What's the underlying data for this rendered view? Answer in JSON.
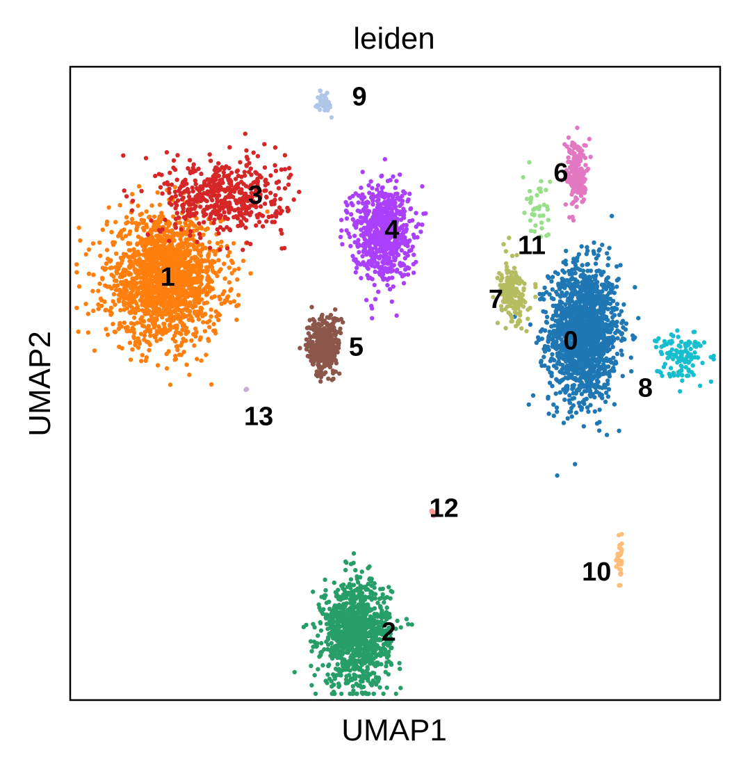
{
  "chart_data": {
    "type": "scatter",
    "title": "leiden",
    "xlabel": "UMAP1",
    "ylabel": "UMAP2",
    "xlim": [
      -10,
      10
    ],
    "ylim": [
      -10,
      10
    ],
    "grid": false,
    "legend": "on data",
    "clusters": [
      {
        "name": "0",
        "color": "#1f77b4",
        "center": [
          5.8,
          1.6
        ],
        "spread": [
          1.05,
          2.15
        ],
        "n": 1600
      },
      {
        "name": "1",
        "color": "#ff7f0e",
        "center": [
          -7.1,
          3.3
        ],
        "spread": [
          1.75,
          1.95
        ],
        "n": 1700
      },
      {
        "name": "2",
        "color": "#279e68",
        "center": [
          -1.2,
          -7.9
        ],
        "spread": [
          1.05,
          1.65
        ],
        "n": 1100
      },
      {
        "name": "3",
        "color": "#d62728",
        "center": [
          -5.3,
          5.9
        ],
        "spread": [
          1.9,
          1.2
        ],
        "n": 500
      },
      {
        "name": "4",
        "color": "#aa40fc",
        "center": [
          -0.4,
          4.8
        ],
        "spread": [
          0.9,
          1.55
        ],
        "n": 700
      },
      {
        "name": "5",
        "color": "#8c564b",
        "center": [
          -2.2,
          1.2
        ],
        "spread": [
          0.5,
          0.95
        ],
        "n": 350
      },
      {
        "name": "6",
        "color": "#e377c2",
        "center": [
          5.6,
          6.6
        ],
        "spread": [
          0.32,
          1.05
        ],
        "n": 200
      },
      {
        "name": "7",
        "color": "#b5bd61",
        "center": [
          3.6,
          2.8
        ],
        "spread": [
          0.45,
          0.95
        ],
        "n": 180
      },
      {
        "name": "8",
        "color": "#17becf",
        "center": [
          8.8,
          0.9
        ],
        "spread": [
          0.7,
          0.8
        ],
        "n": 120
      },
      {
        "name": "9",
        "color": "#aec7e8",
        "center": [
          -2.2,
          8.9
        ],
        "spread": [
          0.18,
          0.35
        ],
        "n": 40
      },
      {
        "name": "10",
        "color": "#ffbb78",
        "center": [
          6.9,
          -5.6
        ],
        "spread": [
          0.12,
          0.6
        ],
        "n": 30
      },
      {
        "name": "11",
        "color": "#98df8a",
        "center": [
          4.4,
          5.4
        ],
        "spread": [
          0.45,
          1.0
        ],
        "n": 40
      },
      {
        "name": "12",
        "color": "#ff9896",
        "center": [
          1.2,
          -4.1
        ],
        "spread": [
          0.1,
          0.12
        ],
        "n": 8
      },
      {
        "name": "13",
        "color": "#c5b0d5",
        "center": [
          -4.6,
          -0.2
        ],
        "spread": [
          0.05,
          0.05
        ],
        "n": 3
      }
    ],
    "label_positions": {
      "0": [
        5.4,
        1.3
      ],
      "1": [
        -7.0,
        3.3
      ],
      "2": [
        -0.2,
        -7.9
      ],
      "3": [
        -4.3,
        5.9
      ],
      "4": [
        -0.1,
        4.8
      ],
      "5": [
        -1.2,
        1.1
      ],
      "6": [
        5.1,
        6.6
      ],
      "7": [
        3.1,
        2.6
      ],
      "8": [
        7.7,
        -0.2
      ],
      "9": [
        -1.1,
        9.0
      ],
      "10": [
        6.2,
        -6.0
      ],
      "11": [
        4.2,
        4.3
      ],
      "12": [
        1.5,
        -4.0
      ],
      "13": [
        -4.2,
        -1.1
      ]
    }
  }
}
